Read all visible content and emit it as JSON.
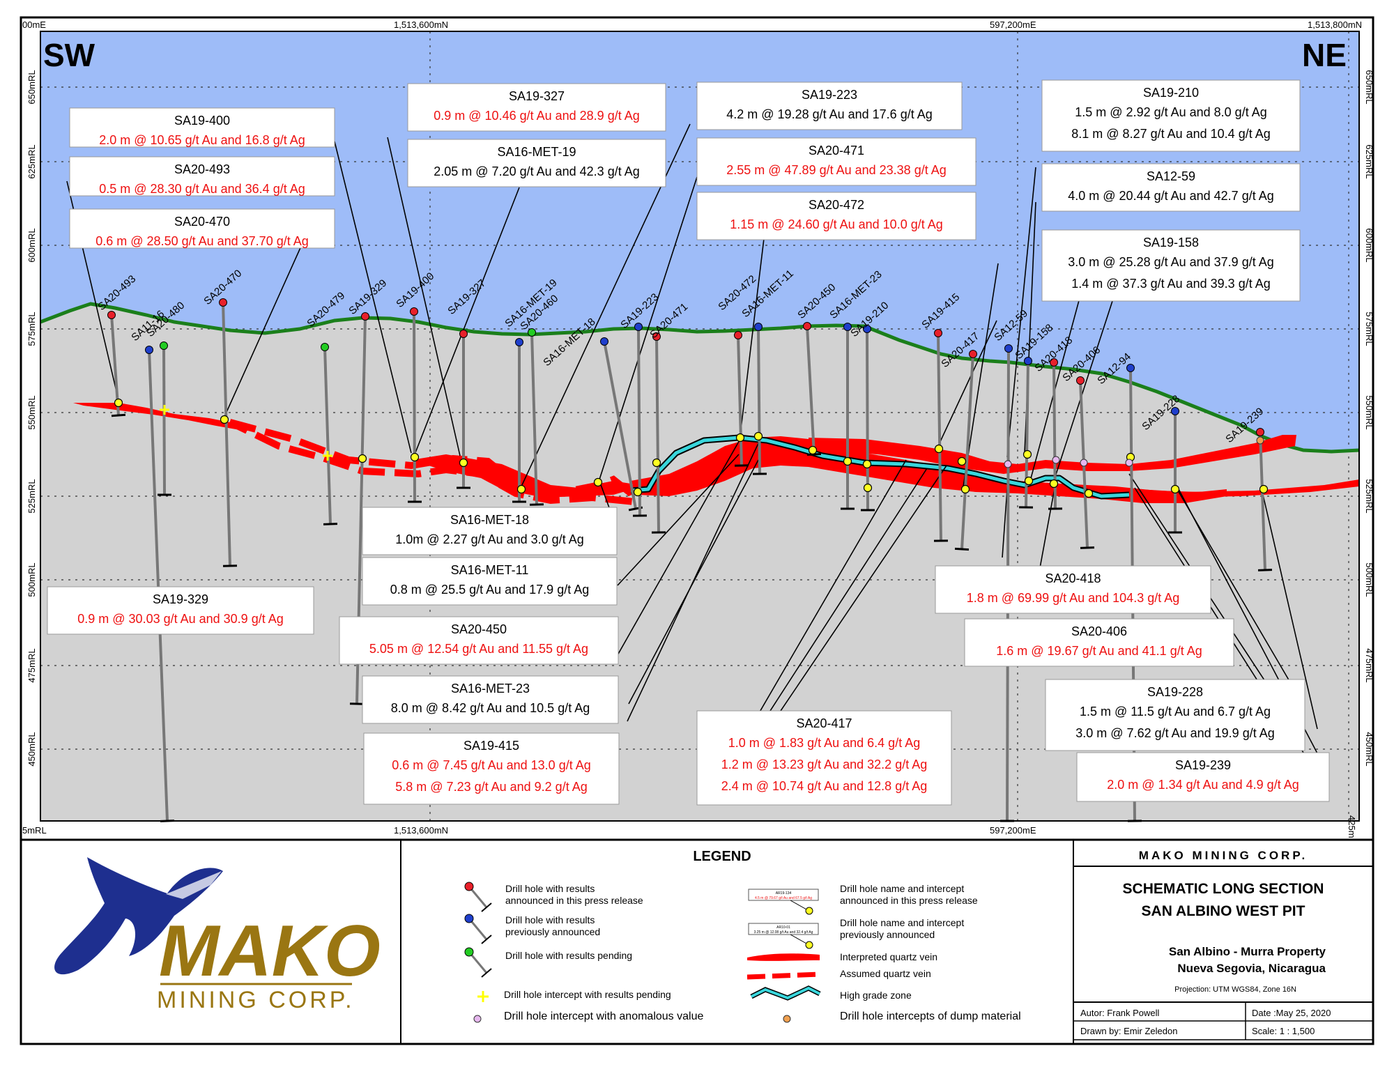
{
  "direction": {
    "left": "SW",
    "right": "NE"
  },
  "grid": {
    "top_labels": [
      "00mE",
      "1,513,600mN",
      "597,200mE",
      "1,513,800mN"
    ],
    "bottom_labels": [
      "5mRL",
      "1,513,600mN",
      "597,200mE",
      "425m"
    ],
    "elevations_left": [
      "650mRL",
      "625mRL",
      "600mRL",
      "575mRL",
      "550mRL",
      "525mRL",
      "500mRL",
      "475mRL",
      "450mRL"
    ],
    "elevations_right": [
      "650mRL",
      "625mRL",
      "600mRL",
      "575mRL",
      "550mRL",
      "525mRL",
      "500mRL",
      "475mRL",
      "450mRL"
    ]
  },
  "colors": {
    "sky": "#9ebcf8",
    "ground": "#d2d2d2",
    "topo": "#1b7f1b",
    "vein": "#ff0000",
    "high_grade": "#39d6dc",
    "new": "#e8202a",
    "previous": "#1f3fcc",
    "pending": "#22cc22",
    "text_red": "#ee1111"
  },
  "holes": [
    {
      "name": "SA20-493",
      "status": "new"
    },
    {
      "name": "SA11-16",
      "status": "previous"
    },
    {
      "name": "SA20-480",
      "status": "pending"
    },
    {
      "name": "SA20-470",
      "status": "new"
    },
    {
      "name": "SA20-479",
      "status": "pending"
    },
    {
      "name": "SA19-329",
      "status": "new"
    },
    {
      "name": "SA19-400",
      "status": "new"
    },
    {
      "name": "SA19-327",
      "status": "new"
    },
    {
      "name": "SA16-MET-19",
      "status": "previous"
    },
    {
      "name": "SA20-460",
      "status": "pending"
    },
    {
      "name": "SA16-MET-18",
      "status": "previous"
    },
    {
      "name": "SA19-223",
      "status": "previous"
    },
    {
      "name": "SA20-471",
      "status": "new"
    },
    {
      "name": "SA20-472",
      "status": "new"
    },
    {
      "name": "SA16-MET-11",
      "status": "previous"
    },
    {
      "name": "SA20-450",
      "status": "new"
    },
    {
      "name": "SA16-MET-23",
      "status": "previous"
    },
    {
      "name": "SA19-210",
      "status": "previous"
    },
    {
      "name": "SA19-415",
      "status": "new"
    },
    {
      "name": "SA20-417",
      "status": "new"
    },
    {
      "name": "SA12-59",
      "status": "previous"
    },
    {
      "name": "SA19-158",
      "status": "previous"
    },
    {
      "name": "SA20-418",
      "status": "new"
    },
    {
      "name": "SA20-406",
      "status": "new"
    },
    {
      "name": "SA12-94",
      "status": "previous"
    },
    {
      "name": "SA19-228",
      "status": "previous"
    },
    {
      "name": "SA19-239",
      "status": "new"
    }
  ],
  "callouts": [
    {
      "title": "SA19-400",
      "lines": [
        "2.0 m @ 10.65 g/t Au and 16.8 g/t Ag"
      ],
      "color": "red"
    },
    {
      "title": "SA20-493",
      "lines": [
        "0.5 m @ 28.30 g/t Au and 36.4 g/t Ag"
      ],
      "color": "red"
    },
    {
      "title": "SA20-470",
      "lines": [
        "0.6 m @ 28.50 g/t Au and 37.70 g/t Ag"
      ],
      "color": "red"
    },
    {
      "title": "SA19-327",
      "lines": [
        "0.9 m @ 10.46 g/t Au and 28.9 g/t Ag"
      ],
      "color": "red"
    },
    {
      "title": "SA16-MET-19",
      "lines": [
        "2.05 m @ 7.20 g/t Au and 42.3 g/t Ag"
      ],
      "color": "black"
    },
    {
      "title": "SA19-223",
      "lines": [
        "4.2 m @ 19.28 g/t Au and 17.6 g/t Ag"
      ],
      "color": "black"
    },
    {
      "title": "SA20-471",
      "lines": [
        "2.55 m @ 47.89 g/t Au and 23.38 g/t Ag"
      ],
      "color": "red"
    },
    {
      "title": "SA20-472",
      "lines": [
        "1.15 m @ 24.60 g/t Au and 10.0 g/t Ag"
      ],
      "color": "red"
    },
    {
      "title": "SA19-210",
      "lines": [
        "1.5 m @ 2.92 g/t Au and 8.0 g/t Ag",
        "8.1 m @ 8.27 g/t Au and 10.4 g/t Ag"
      ],
      "color": "black"
    },
    {
      "title": "SA12-59",
      "lines": [
        "4.0 m @ 20.44 g/t Au and 42.7 g/t Ag"
      ],
      "color": "black"
    },
    {
      "title": "SA19-158",
      "lines": [
        "3.0 m @ 25.28 g/t Au and 37.9 g/t Ag",
        "1.4 m @  37.3 g/t Au and  39.3 g/t Ag"
      ],
      "color": "black"
    },
    {
      "title": "SA16-MET-18",
      "lines": [
        "1.0m @ 2.27 g/t Au and 3.0 g/t Ag"
      ],
      "color": "black"
    },
    {
      "title": "SA16-MET-11",
      "lines": [
        "0.8 m @ 25.5 g/t Au and 17.9 g/t Ag"
      ],
      "color": "black"
    },
    {
      "title": "SA19-329",
      "lines": [
        "0.9 m @ 30.03 g/t Au and 30.9 g/t Ag"
      ],
      "color": "red"
    },
    {
      "title": "SA20-450",
      "lines": [
        "5.05 m @ 12.54 g/t Au and 11.55 g/t Ag"
      ],
      "color": "red"
    },
    {
      "title": "SA16-MET-23",
      "lines": [
        "8.0 m @ 8.42 g/t Au and 10.5 g/t Ag"
      ],
      "color": "black"
    },
    {
      "title": "SA19-415",
      "lines": [
        "0.6 m @ 7.45 g/t Au and 13.0 g/t Ag",
        "5.8 m @ 7.23 g/t Au and 9.2 g/t Ag"
      ],
      "color": "red"
    },
    {
      "title": "SA20-417",
      "lines": [
        "1.0 m @ 1.83 g/t Au and 6.4 g/t Ag",
        "1.2 m @ 13.23 g/t Au and 32.2 g/t Ag",
        "2.4 m @ 10.74 g/t Au and 12.8 g/t Ag"
      ],
      "color": "red"
    },
    {
      "title": "SA20-418",
      "lines": [
        "1.8 m @ 69.99 g/t Au and 104.3 g/t Ag"
      ],
      "color": "red"
    },
    {
      "title": "SA20-406",
      "lines": [
        "1.6 m @ 19.67 g/t Au and 41.1 g/t Ag"
      ],
      "color": "red"
    },
    {
      "title": "SA19-228",
      "lines": [
        "1.5 m @ 11.5 g/t Au and 6.7 g/t Ag",
        "3.0 m @ 7.62 g/t Au and 19.9 g/t Ag"
      ],
      "color": "black"
    },
    {
      "title": "SA19-239",
      "lines": [
        "2.0 m @ 1.34 g/t Au and 4.9 g/t Ag"
      ],
      "color": "red"
    }
  ],
  "legend": {
    "title": "LEGEND",
    "items": [
      {
        "label": "Drill hole with results\nannounced in this press release",
        "icon": "hole-new"
      },
      {
        "label": "Drill hole with results\npreviously announced",
        "icon": "hole-previous"
      },
      {
        "label": "Drill hole with results pending",
        "icon": "hole-pending"
      },
      {
        "label": "Drill hole intercept with results pending",
        "icon": "cross"
      },
      {
        "label": "Drill hole intercept with anomalous value",
        "icon": "pink-dot"
      },
      {
        "label": "Drill hole name and intercept\nannounced in this press release",
        "icon": "tag-new"
      },
      {
        "label": "Drill hole name and intercept\npreviously announced",
        "icon": "tag-previous"
      },
      {
        "label": "Interpreted quartz vein",
        "icon": "vein"
      },
      {
        "label": "Assumed quartz vein",
        "icon": "vein-dashed"
      },
      {
        "label": "High grade zone",
        "icon": "high-grade"
      },
      {
        "label": "Drill hole intercepts of dump material",
        "icon": "orange-dot"
      }
    ],
    "tag_new_title": "AR19-134",
    "tag_new_text": "4.5 m @ 79.67 g/t Au and 67.5 g/t Ag",
    "tag_prev_title": "AR10-01",
    "tag_prev_text": "3.25 m @ 12.08 g/t Au and 32.4 g/t Ag"
  },
  "logo": {
    "word": "MAKO",
    "sub": "MINING CORP."
  },
  "title_block": {
    "company": "MAKO MINING CORP.",
    "title1": "SCHEMATIC LONG SECTION",
    "title2": "SAN ALBINO WEST PIT",
    "property": "San Albino - Murra Property",
    "location": "Nueva Segovia, Nicaragua",
    "projection": "Projection: UTM WGS84, Zone 16N",
    "author": "Autor: Frank Powell",
    "drawn": "Drawn by: Emir Zeledon",
    "date": "Date :May 25,  2020",
    "scale": "Scale: 1 : 1,500"
  }
}
